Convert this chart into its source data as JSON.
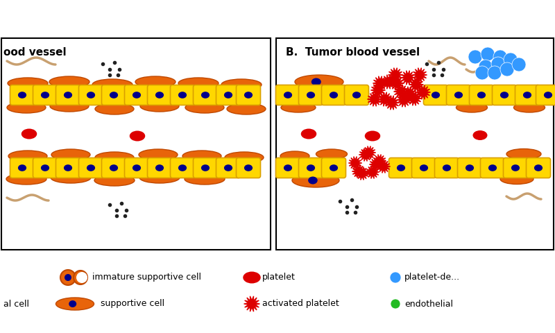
{
  "bg_color": "#ffffff",
  "border_color": "#000000",
  "panel_B_title": "B.  Tumor blood vessel",
  "panel_A_title": "ood vessel",
  "yellow_cell_color": "#FFD700",
  "yellow_cell_edge": "#DAA000",
  "blue_nucleus_color": "#00008B",
  "orange_support_color": "#E8640A",
  "orange_support_edge": "#C04800",
  "red_platelet_color": "#DD0000",
  "blue_platelet_color": "#3399FF",
  "black_dot_color": "#222222",
  "tan_wave_color": "#C8A070",
  "green_color": "#22BB22",
  "legend_immature_text": "immature supportive cell",
  "legend_support_text": "supportive cell",
  "legend_platelet_text": "platelet",
  "legend_activated_text": "activated platelet",
  "legend_platelet_derived_text": "platelet-de...",
  "legend_endothelial_text": "endothelial",
  "legend_al_cell_text": "al cell"
}
